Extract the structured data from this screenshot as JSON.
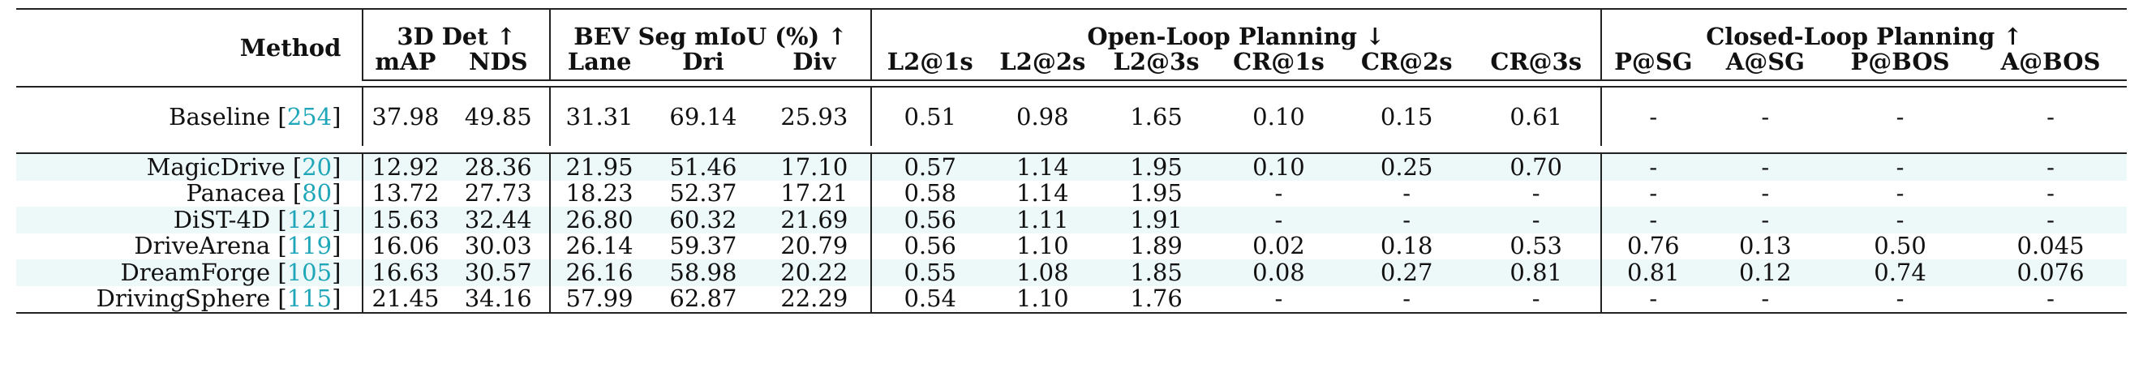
{
  "header": {
    "method": "Method",
    "det_group": "3D Det ↑",
    "bev_group": "BEV Seg mIoU (%) ↑",
    "open_group": "Open-Loop Planning ↓",
    "closed_group": "Closed-Loop Planning ↑",
    "cols": [
      "mAP",
      "NDS",
      "Lane",
      "Dri",
      "Div",
      "L2@1s",
      "L2@2s",
      "L2@3s",
      "CR@1s",
      "CR@2s",
      "CR@3s",
      "P@SG",
      "A@SG",
      "P@BOS",
      "A@BOS"
    ]
  },
  "baseline": {
    "name": "Baseline",
    "ref": "254",
    "values": [
      "37.98",
      "49.85",
      "31.31",
      "69.14",
      "25.93",
      "0.51",
      "0.98",
      "1.65",
      "0.10",
      "0.15",
      "0.61",
      "-",
      "-",
      "-",
      "-"
    ]
  },
  "rows": [
    {
      "name": "MagicDrive",
      "ref": "20",
      "values": [
        "12.92",
        "28.36",
        "21.95",
        "51.46",
        "17.10",
        "0.57",
        "1.14",
        "1.95",
        "0.10",
        "0.25",
        "0.70",
        "-",
        "-",
        "-",
        "-"
      ]
    },
    {
      "name": "Panacea",
      "ref": "80",
      "values": [
        "13.72",
        "27.73",
        "18.23",
        "52.37",
        "17.21",
        "0.58",
        "1.14",
        "1.95",
        "-",
        "-",
        "-",
        "-",
        "-",
        "-",
        "-"
      ]
    },
    {
      "name": "DiST-4D",
      "ref": "121",
      "values": [
        "15.63",
        "32.44",
        "26.80",
        "60.32",
        "21.69",
        "0.56",
        "1.11",
        "1.91",
        "-",
        "-",
        "-",
        "-",
        "-",
        "-",
        "-"
      ]
    },
    {
      "name": "DriveArena",
      "ref": "119",
      "values": [
        "16.06",
        "30.03",
        "26.14",
        "59.37",
        "20.79",
        "0.56",
        "1.10",
        "1.89",
        "0.02",
        "0.18",
        "0.53",
        "0.76",
        "0.13",
        "0.50",
        "0.045"
      ]
    },
    {
      "name": "DreamForge",
      "ref": "105",
      "values": [
        "16.63",
        "30.57",
        "26.16",
        "58.98",
        "20.22",
        "0.55",
        "1.08",
        "1.85",
        "0.08",
        "0.27",
        "0.81",
        "0.81",
        "0.12",
        "0.74",
        "0.076"
      ]
    },
    {
      "name": "DrivingSphere",
      "ref": "115",
      "values": [
        "21.45",
        "34.16",
        "57.99",
        "62.87",
        "22.29",
        "0.54",
        "1.10",
        "1.76",
        "-",
        "-",
        "-",
        "-",
        "-",
        "-",
        "-"
      ]
    }
  ]
}
